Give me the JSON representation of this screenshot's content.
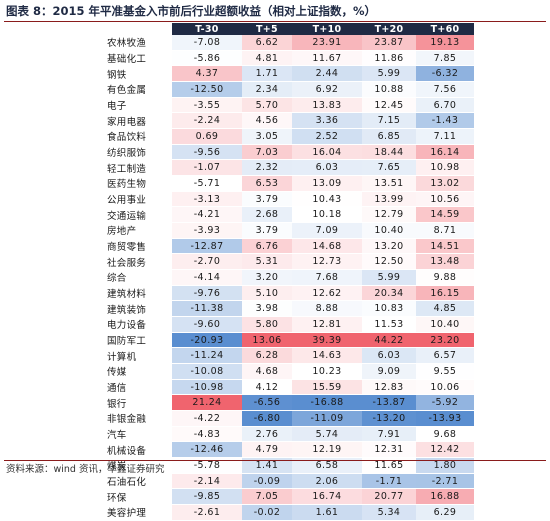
{
  "title": "图表 8：2015 年平准基金入市前后行业超额收益（相对上证指数，%）",
  "columns": [
    "T-30",
    "T+5",
    "T+10",
    "T+20",
    "T+60"
  ],
  "rows": [
    {
      "label": "农林牧渔",
      "values": [
        "-7.08",
        "6.62",
        "23.91",
        "23.87",
        "19.13"
      ]
    },
    {
      "label": "基础化工",
      "values": [
        "-5.86",
        "4.81",
        "11.67",
        "11.86",
        "7.85"
      ]
    },
    {
      "label": "钢铁",
      "values": [
        "4.37",
        "1.71",
        "2.44",
        "5.99",
        "-6.32"
      ]
    },
    {
      "label": "有色金属",
      "values": [
        "-12.50",
        "2.34",
        "6.92",
        "10.88",
        "7.56"
      ]
    },
    {
      "label": "电子",
      "values": [
        "-3.55",
        "5.70",
        "13.83",
        "12.45",
        "6.70"
      ]
    },
    {
      "label": "家用电器",
      "values": [
        "-2.24",
        "4.56",
        "3.36",
        "7.15",
        "-1.43"
      ]
    },
    {
      "label": "食品饮料",
      "values": [
        "0.69",
        "3.05",
        "2.52",
        "6.85",
        "7.11"
      ]
    },
    {
      "label": "纺织服饰",
      "values": [
        "-9.56",
        "7.03",
        "16.04",
        "18.44",
        "16.14"
      ]
    },
    {
      "label": "轻工制造",
      "values": [
        "-1.07",
        "2.32",
        "6.03",
        "7.65",
        "10.98"
      ]
    },
    {
      "label": "医药生物",
      "values": [
        "-5.71",
        "6.53",
        "13.09",
        "13.51",
        "13.02"
      ]
    },
    {
      "label": "公用事业",
      "values": [
        "-3.13",
        "3.79",
        "10.43",
        "13.99",
        "10.56"
      ]
    },
    {
      "label": "交通运输",
      "values": [
        "-4.21",
        "2.68",
        "10.18",
        "12.79",
        "14.59"
      ]
    },
    {
      "label": "房地产",
      "values": [
        "-3.93",
        "3.79",
        "7.09",
        "10.40",
        "8.71"
      ]
    },
    {
      "label": "商贸零售",
      "values": [
        "-12.87",
        "6.76",
        "14.68",
        "13.20",
        "14.51"
      ]
    },
    {
      "label": "社会服务",
      "values": [
        "-2.70",
        "5.31",
        "12.73",
        "12.50",
        "13.48"
      ]
    },
    {
      "label": "综合",
      "values": [
        "-4.14",
        "3.20",
        "7.68",
        "5.99",
        "9.88"
      ]
    },
    {
      "label": "建筑材料",
      "values": [
        "-9.76",
        "5.10",
        "12.62",
        "20.34",
        "16.15"
      ]
    },
    {
      "label": "建筑装饰",
      "values": [
        "-11.38",
        "3.98",
        "8.88",
        "10.83",
        "4.85"
      ]
    },
    {
      "label": "电力设备",
      "values": [
        "-9.60",
        "5.80",
        "12.81",
        "11.53",
        "10.40"
      ]
    },
    {
      "label": "国防军工",
      "values": [
        "-20.93",
        "13.06",
        "39.39",
        "44.22",
        "23.20"
      ]
    },
    {
      "label": "计算机",
      "values": [
        "-11.24",
        "6.28",
        "14.63",
        "6.03",
        "6.57"
      ]
    },
    {
      "label": "传媒",
      "values": [
        "-10.08",
        "4.68",
        "10.23",
        "9.09",
        "9.55"
      ]
    },
    {
      "label": "通信",
      "values": [
        "-10.98",
        "4.12",
        "15.59",
        "12.83",
        "10.06"
      ]
    },
    {
      "label": "银行",
      "values": [
        "21.24",
        "-6.56",
        "-16.88",
        "-13.87",
        "-5.92"
      ]
    },
    {
      "label": "非银金融",
      "values": [
        "-4.22",
        "-6.80",
        "-11.09",
        "-13.20",
        "-13.93"
      ]
    },
    {
      "label": "汽车",
      "values": [
        "-4.83",
        "2.76",
        "5.74",
        "7.91",
        "9.68"
      ]
    },
    {
      "label": "机械设备",
      "values": [
        "-12.46",
        "4.79",
        "12.19",
        "12.31",
        "12.42"
      ]
    },
    {
      "label": "煤炭",
      "values": [
        "-5.78",
        "1.41",
        "6.58",
        "11.65",
        "1.80"
      ]
    },
    {
      "label": "石油石化",
      "values": [
        "-2.14",
        "-0.09",
        "2.06",
        "-1.71",
        "-2.71"
      ]
    },
    {
      "label": "环保",
      "values": [
        "-9.85",
        "7.05",
        "16.74",
        "20.77",
        "16.88"
      ]
    },
    {
      "label": "美容护理",
      "values": [
        "-2.61",
        "-0.02",
        "1.61",
        "5.34",
        "6.29"
      ]
    }
  ],
  "colors": {
    "header_bg": "#1f2a44",
    "positive_max": "#f0646e",
    "negative_max": "#5a8ed0",
    "neutral": "#ffffff",
    "rule": "#8a1c1c"
  },
  "source": "资料来源：wind 资讯，华鑫证券研究"
}
